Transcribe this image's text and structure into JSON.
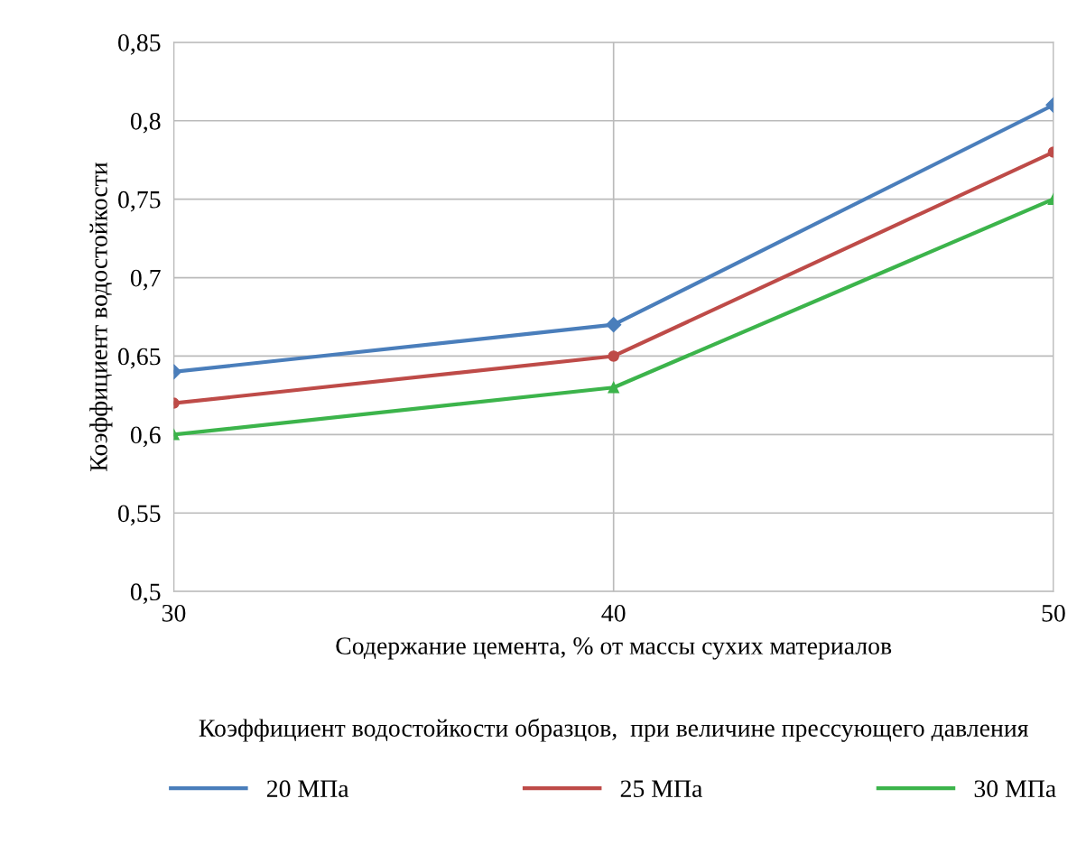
{
  "chart_data": {
    "type": "line",
    "xlabel": "Содержание цемента, % от массы сухих материалов",
    "ylabel": "Коэффициент водостойкости",
    "legend_title": "Коэффициент водостойкости образцов,  при величине прессующего давления",
    "x": [
      30,
      40,
      50
    ],
    "series": [
      {
        "name": "20 МПа",
        "color": "#4a7ebb",
        "marker": "diamond",
        "values": [
          0.64,
          0.67,
          0.81
        ]
      },
      {
        "name": "25 МПа",
        "color": "#be4b48",
        "marker": "circle",
        "values": [
          0.62,
          0.65,
          0.78
        ]
      },
      {
        "name": "30 МПа",
        "color": "#3cb44b",
        "marker": "triangle",
        "values": [
          0.6,
          0.63,
          0.75
        ]
      }
    ],
    "xlim": [
      30,
      50
    ],
    "xticks": [
      30,
      40,
      50
    ],
    "ylim": [
      0.5,
      0.85
    ],
    "yticks": [
      {
        "value": 0.5,
        "label": "0,5"
      },
      {
        "value": 0.55,
        "label": "0,55"
      },
      {
        "value": 0.6,
        "label": "0,6"
      },
      {
        "value": 0.65,
        "label": "0,65"
      },
      {
        "value": 0.7,
        "label": "0,7"
      },
      {
        "value": 0.75,
        "label": "0,75"
      },
      {
        "value": 0.8,
        "label": "0,8"
      },
      {
        "value": 0.85,
        "label": "0,85"
      }
    ],
    "grid": true,
    "legend": "bottom",
    "line_style": "solid"
  }
}
